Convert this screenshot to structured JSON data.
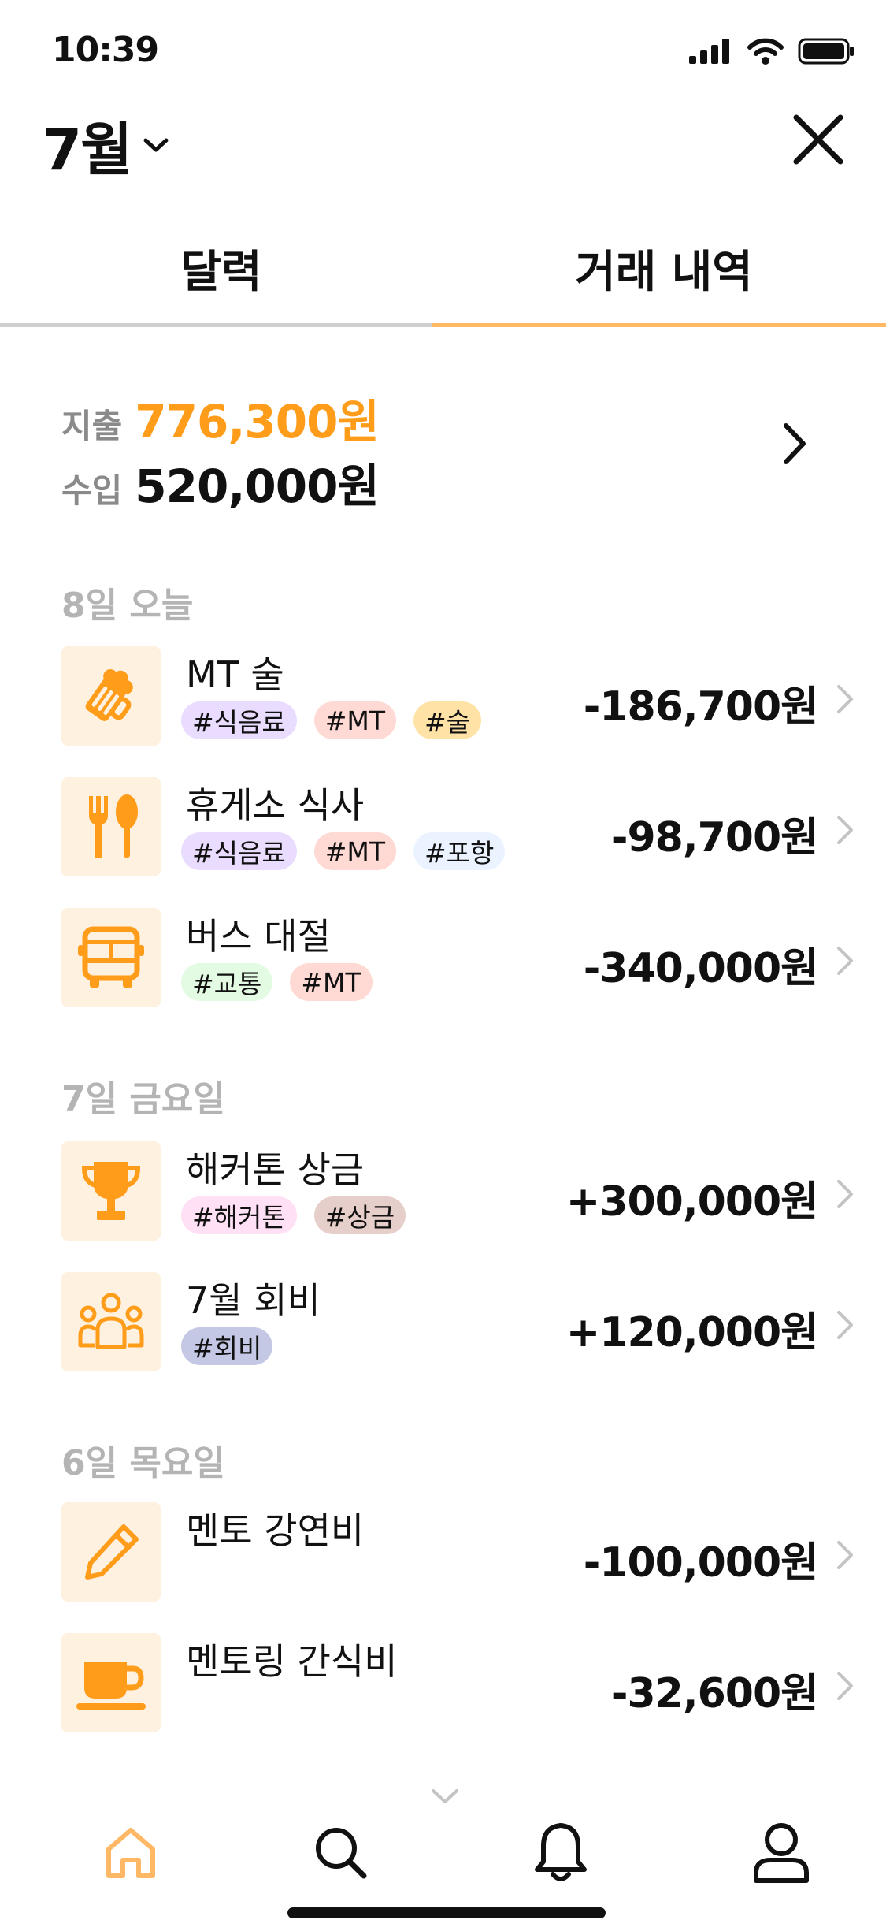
{
  "status_bar": {
    "time": "10:39"
  },
  "header": {
    "month": "7월"
  },
  "tabs": [
    {
      "label": "달력"
    },
    {
      "label": "거래 내역"
    }
  ],
  "summary": {
    "expense_label": "지출",
    "expense_value": "776,300원",
    "income_label": "수입",
    "income_value": "520,000원"
  },
  "sections": [
    {
      "date": "8일 오늘",
      "items": [
        {
          "icon": "beer-icon",
          "title": "MT 술",
          "amount": "-186,700원",
          "tags": [
            {
              "label": "#식음료",
              "color": "#eadcff"
            },
            {
              "label": "#MT",
              "color": "#ffd9d4"
            },
            {
              "label": "#술",
              "color": "#ffe3a6"
            }
          ]
        },
        {
          "icon": "utensils-icon",
          "title": "휴게소 식사",
          "amount": "-98,700원",
          "tags": [
            {
              "label": "#식음료",
              "color": "#eadcff"
            },
            {
              "label": "#MT",
              "color": "#ffd9d4"
            },
            {
              "label": "#포항",
              "color": "#eaf3ff"
            }
          ]
        },
        {
          "icon": "bus-icon",
          "title": "버스 대절",
          "amount": "-340,000원",
          "tags": [
            {
              "label": "#교통",
              "color": "#e3fbe3"
            },
            {
              "label": "#MT",
              "color": "#ffd9d4"
            }
          ]
        }
      ]
    },
    {
      "date": "7일 금요일",
      "items": [
        {
          "icon": "trophy-icon",
          "title": "해커톤 상금",
          "amount": "+300,000원",
          "tags": [
            {
              "label": "#해커톤",
              "color": "#ffe0f5"
            },
            {
              "label": "#상금",
              "color": "#e6cfcb"
            }
          ]
        },
        {
          "icon": "group-icon",
          "title": "7월 회비",
          "amount": "+120,000원",
          "tags": [
            {
              "label": "#회비",
              "color": "#c5c8e4"
            }
          ]
        }
      ]
    },
    {
      "date": "6일 목요일",
      "items": [
        {
          "icon": "pencil-icon",
          "title": "멘토 강연비",
          "amount": "-100,000원",
          "tags": []
        },
        {
          "icon": "coffee-icon",
          "title": "멘토링 간식비",
          "amount": "-32,600원",
          "tags": []
        }
      ]
    }
  ],
  "colors": {
    "accent": "#ff9c1a",
    "icon_bg": "#fff1df",
    "tab_active_line": "#ffb865"
  },
  "bottom_nav": [
    "home-icon",
    "search-icon",
    "bell-icon",
    "profile-icon"
  ]
}
